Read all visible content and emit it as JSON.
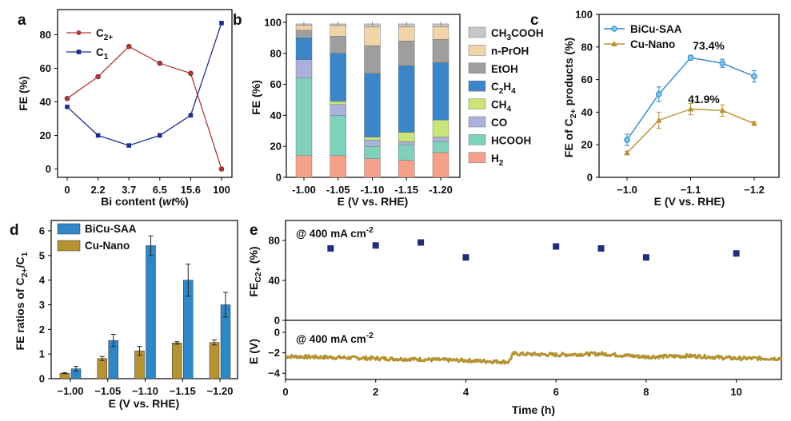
{
  "colors": {
    "c2": "#b03a3a",
    "c1": "#1f2d8a",
    "bicu": "#2f87c8",
    "cunano": "#b59333",
    "stack": [
      "#f4a08a",
      "#7fd1bc",
      "#aab1db",
      "#c9e57a",
      "#3a86c9",
      "#9e9e9e",
      "#f1d5a8",
      "#c7c7c7"
    ]
  },
  "panel_labels": [
    "a",
    "b",
    "c",
    "d",
    "e"
  ],
  "chart_data": [
    {
      "panel": "a",
      "type": "line",
      "categories": [
        "0",
        "2.2",
        "3.7",
        "6.5",
        "15.6",
        "100"
      ],
      "xlabel": "Bi content (wt%)",
      "xlabel_parts": [
        "Bi content (",
        "wt",
        "%)"
      ],
      "ylabel": "FE (%)",
      "ylim": [
        -5,
        95
      ],
      "yticks": [
        "0",
        "20",
        "40",
        "60",
        "80"
      ],
      "series": [
        {
          "name": "C2+",
          "name_main": "C",
          "name_sub": "2+",
          "values": [
            42,
            55,
            73,
            63,
            57,
            0
          ]
        },
        {
          "name": "C1",
          "name_main": "C",
          "name_sub": "1",
          "values": [
            37,
            20,
            14,
            20,
            32,
            87
          ]
        }
      ]
    },
    {
      "panel": "b",
      "type": "bar",
      "stacked": true,
      "categories": [
        "-1.00",
        "-1.05",
        "-1.10",
        "-1.15",
        "-1.20"
      ],
      "xlabel": "E (V vs. RHE)",
      "ylabel": "FE (%)",
      "ylim": [
        0,
        100
      ],
      "yticks": [
        "0",
        "20",
        "40",
        "60",
        "80",
        "100"
      ],
      "legend_order_top_to_bottom": [
        "CH3COOH",
        "n-PrOH",
        "EtOH",
        "C2H4",
        "CH4",
        "CO",
        "HCOOH",
        "H2"
      ],
      "legend_labels": [
        {
          "main": "CH",
          "sub": "3",
          "rest": "COOH"
        },
        {
          "main": "n-PrOH",
          "sub": "",
          "rest": ""
        },
        {
          "main": "EtOH",
          "sub": "",
          "rest": ""
        },
        {
          "main": "C",
          "sub": "2",
          "rest": "H",
          "sub2": "4"
        },
        {
          "main": "CH",
          "sub": "4",
          "rest": ""
        },
        {
          "main": "CO",
          "sub": "",
          "rest": ""
        },
        {
          "main": "HCOOH",
          "sub": "",
          "rest": ""
        },
        {
          "main": "H",
          "sub": "2",
          "rest": ""
        }
      ],
      "series": [
        {
          "name": "H2",
          "values": [
            14,
            14,
            12,
            11,
            16
          ]
        },
        {
          "name": "HCOOH",
          "values": [
            50,
            26,
            8,
            10,
            7
          ]
        },
        {
          "name": "CO",
          "values": [
            12,
            7,
            4,
            2,
            3
          ]
        },
        {
          "name": "CH4",
          "values": [
            0,
            2,
            2,
            6,
            11
          ]
        },
        {
          "name": "C2H4",
          "values": [
            14,
            31,
            41,
            43,
            37
          ]
        },
        {
          "name": "EtOH",
          "values": [
            5,
            11,
            18,
            16,
            15
          ]
        },
        {
          "name": "n-PrOH",
          "values": [
            3,
            7,
            12,
            9,
            8
          ]
        },
        {
          "name": "CH3COOH",
          "values": [
            1,
            1,
            2,
            2,
            2
          ]
        }
      ]
    },
    {
      "panel": "c",
      "type": "line",
      "x": [
        -1.0,
        -1.05,
        -1.1,
        -1.15,
        -1.2
      ],
      "xticks": [
        "−1.0",
        "−1.1",
        "−1.2"
      ],
      "xlabel": "E (V vs. RHE)",
      "ylabel": "FE of C2+ products (%)",
      "ylabel_parts": [
        "FE of C",
        "2+",
        " products (%)"
      ],
      "ylim": [
        0,
        100
      ],
      "yticks": [
        "0",
        "20",
        "40",
        "60",
        "80",
        "100"
      ],
      "annotations": [
        "73.4%",
        "41.9%"
      ],
      "series": [
        {
          "name": "BiCu-SAA",
          "values": [
            23,
            51,
            73.4,
            70,
            62
          ],
          "errors": [
            3.5,
            4.5,
            1.5,
            2.5,
            3.5
          ]
        },
        {
          "name": "Cu-Nano",
          "values": [
            15,
            35,
            41.9,
            41,
            33
          ],
          "errors": [
            1,
            5,
            3.5,
            3.5,
            1
          ]
        }
      ]
    },
    {
      "panel": "d",
      "type": "bar",
      "categories": [
        "−1.00",
        "−1.05",
        "−1.10",
        "−1.15",
        "−1.20"
      ],
      "xlabel": "E (V vs. RHE)",
      "ylabel": "FE ratios of C2+/C1",
      "ylabel_parts": [
        "FE ratios of C",
        "2+",
        "/C",
        "1"
      ],
      "ylim": [
        0,
        6.5
      ],
      "yticks": [
        "0",
        "1",
        "2",
        "3",
        "4",
        "5",
        "6"
      ],
      "series": [
        {
          "name": "BiCu-SAA",
          "values": [
            0.4,
            1.55,
            5.4,
            4.0,
            3.0
          ],
          "errors": [
            0.1,
            0.25,
            0.4,
            0.65,
            0.5
          ]
        },
        {
          "name": "Cu-Nano",
          "values": [
            0.22,
            0.82,
            1.13,
            1.45,
            1.47
          ],
          "errors": [
            0.02,
            0.08,
            0.18,
            0.05,
            0.1
          ]
        }
      ]
    },
    {
      "panel": "e",
      "type": "scatter",
      "xlabel": "Time (h)",
      "xticks": [
        "0",
        "2",
        "4",
        "6",
        "8",
        "10"
      ],
      "xlim": [
        0,
        11
      ],
      "top": {
        "label": "@ 400 mA cm-2",
        "label_parts": [
          "@ 400 mA cm",
          "-2"
        ],
        "ylabel": "FE C2+ (%)",
        "ylim": [
          0,
          100
        ],
        "yticks": [
          "0",
          "40",
          "80"
        ],
        "x": [
          1,
          2,
          3,
          4,
          6,
          7,
          8,
          10
        ],
        "y": [
          72,
          75,
          78,
          63,
          74,
          72,
          63,
          67
        ]
      },
      "bottom": {
        "label": "@ 400 mA cm-2",
        "label_parts": [
          "@ 400 mA cm",
          "-2"
        ],
        "ylabel": "E (V)",
        "ylim": [
          -5,
          0
        ],
        "yticks": [
          "0",
          "-2",
          "-4"
        ],
        "trace": [
          [
            0,
            -2.35
          ],
          [
            1,
            -2.45
          ],
          [
            2,
            -2.55
          ],
          [
            3,
            -2.65
          ],
          [
            4,
            -2.75
          ],
          [
            4.95,
            -2.9
          ],
          [
            5.05,
            -2.1
          ],
          [
            6,
            -2.2
          ],
          [
            7,
            -2.1
          ],
          [
            8,
            -2.4
          ],
          [
            9,
            -2.3
          ],
          [
            10,
            -2.55
          ],
          [
            11,
            -2.55
          ]
        ]
      }
    }
  ]
}
